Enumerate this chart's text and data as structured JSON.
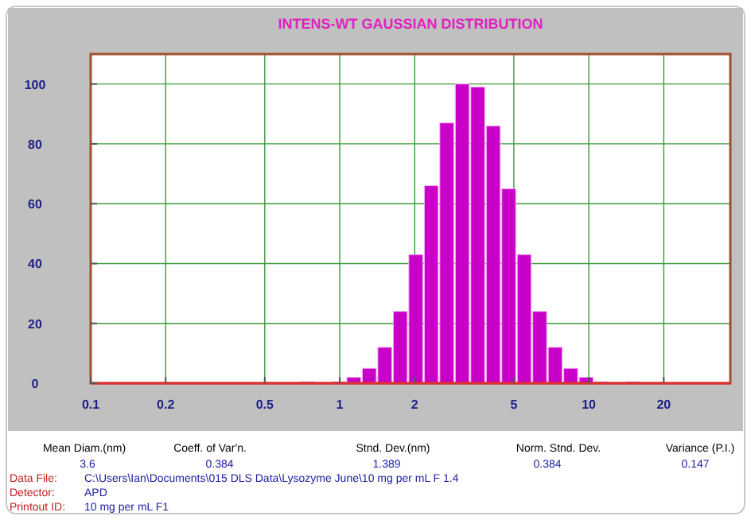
{
  "chart_data": {
    "type": "histogram",
    "title": "INTENS-WT GAUSSIAN DISTRIBUTION",
    "bins": [
      0.695,
      0.802,
      0.926,
      1.068,
      1.233,
      1.422,
      1.641,
      1.894,
      2.186,
      2.522,
      2.911,
      3.359,
      3.877,
      4.474,
      5.163,
      5.957,
      6.874,
      7.932,
      9.155,
      10.56,
      12.19,
      14.07,
      16.23
    ],
    "values": [
      0.5,
      0,
      0.5,
      2,
      5,
      12,
      24,
      43,
      66,
      87,
      100,
      99,
      86,
      65,
      43,
      24,
      12,
      5,
      2,
      0.5,
      0,
      0.5
    ],
    "color": "#c800c8",
    "log": "x",
    "xlim": [
      0.1,
      37
    ],
    "xticks": [
      0.1,
      0.2,
      0.5,
      1,
      2,
      5,
      10,
      20
    ],
    "ylim": [
      0,
      110
    ],
    "yticks": [
      0,
      20,
      40,
      60,
      80,
      100
    ],
    "grid": true,
    "annotations": [
      "Mean Diam.(nm)",
      "Coeff. of Var'n.",
      "Stnd. Dev.(nm)",
      "Norm. Stnd. Dev.",
      "Variance (P.I.)",
      "3.6",
      "0.384",
      "1.389",
      "0.384",
      "0.147",
      "Data File:",
      "Detector:",
      "Printout ID:",
      "C:\\Users\\Ian\\Documents\\015 DLS Data\\Lysozyme June\\10 mg per mL F 1.4",
      "APD",
      "10 mg per mL F1"
    ]
  }
}
